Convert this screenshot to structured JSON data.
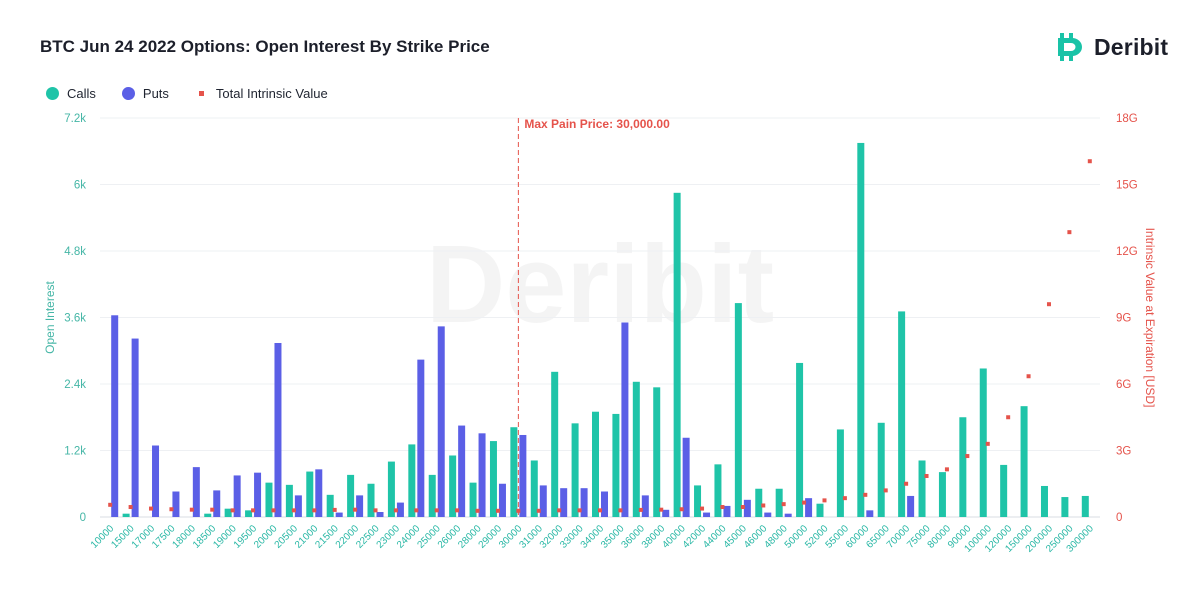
{
  "title": "BTC Jun 24 2022 Options: Open Interest By Strike Price",
  "brand": {
    "name": "Deribit",
    "watermark": "Deribit",
    "color": "#19c3a7"
  },
  "legend": [
    {
      "label": "Calls",
      "color": "#1fc4a8",
      "shape": "circle"
    },
    {
      "label": "Puts",
      "color": "#5b5fe6",
      "shape": "circle"
    },
    {
      "label": "Total Intrinsic Value",
      "color": "#e5534b",
      "shape": "square"
    }
  ],
  "chart_data": {
    "type": "bar",
    "xlabel": "",
    "ylabel_left": "Open Interest",
    "ylabel_right": "Intrinsic Value at Expiration [USD]",
    "ylim_left": [
      0,
      7200
    ],
    "ylim_right": [
      0,
      18
    ],
    "left_ticks": [
      "0",
      "1.2k",
      "2.4k",
      "3.6k",
      "4.8k",
      "6k",
      "7.2k"
    ],
    "right_ticks": [
      "0",
      "3G",
      "6G",
      "9G",
      "12G",
      "15G",
      "18G"
    ],
    "grid": true,
    "legend_position": "top-left",
    "max_pain": {
      "strike": "30000",
      "label": "Max Pain Price: 30,000.00"
    },
    "categories": [
      "10000",
      "15000",
      "17000",
      "17500",
      "18000",
      "18500",
      "19000",
      "19500",
      "20000",
      "20500",
      "21000",
      "21500",
      "22000",
      "22500",
      "23000",
      "24000",
      "25000",
      "26000",
      "28000",
      "29000",
      "30000",
      "31000",
      "32000",
      "33000",
      "34000",
      "35000",
      "36000",
      "38000",
      "40000",
      "42000",
      "44000",
      "45000",
      "46000",
      "48000",
      "50000",
      "52000",
      "55000",
      "60000",
      "65000",
      "70000",
      "75000",
      "80000",
      "90000",
      "100000",
      "120000",
      "150000",
      "200000",
      "250000",
      "300000"
    ],
    "series": [
      {
        "name": "Calls",
        "axis": "left",
        "type": "bar",
        "color": "#1fc4a8",
        "values": [
          0,
          60,
          0,
          0,
          0,
          60,
          150,
          120,
          620,
          580,
          820,
          400,
          760,
          600,
          1000,
          1310,
          760,
          1110,
          620,
          1370,
          1620,
          1020,
          2620,
          1690,
          1900,
          1860,
          2440,
          2340,
          5850,
          570,
          950,
          3860,
          510,
          510,
          2780,
          240,
          1580,
          6750,
          1700,
          3710,
          1020,
          810,
          1800,
          2680,
          940,
          2000,
          560,
          360,
          380
        ]
      },
      {
        "name": "Puts",
        "axis": "left",
        "type": "bar",
        "color": "#5b5fe6",
        "values": [
          3640,
          3220,
          1290,
          460,
          900,
          480,
          750,
          800,
          3140,
          390,
          860,
          80,
          390,
          90,
          260,
          2840,
          3440,
          1650,
          1510,
          600,
          1480,
          570,
          520,
          520,
          460,
          3510,
          390,
          130,
          1430,
          80,
          200,
          310,
          80,
          60,
          340,
          0,
          0,
          120,
          0,
          380,
          0,
          0,
          0,
          0,
          0,
          0,
          0,
          0,
          0
        ]
      },
      {
        "name": "Total Intrinsic Value",
        "axis": "right",
        "type": "scatter",
        "color": "#e5534b",
        "values": [
          0.55,
          0.45,
          0.38,
          0.35,
          0.33,
          0.33,
          0.3,
          0.3,
          0.3,
          0.3,
          0.3,
          0.32,
          0.33,
          0.3,
          0.3,
          0.3,
          0.3,
          0.3,
          0.28,
          0.28,
          0.28,
          0.28,
          0.3,
          0.3,
          0.3,
          0.3,
          0.32,
          0.33,
          0.35,
          0.38,
          0.45,
          0.45,
          0.52,
          0.58,
          0.65,
          0.75,
          0.85,
          1.0,
          1.2,
          1.5,
          1.85,
          2.15,
          2.75,
          3.3,
          4.5,
          6.35,
          9.6,
          12.85,
          16.05
        ]
      }
    ]
  }
}
